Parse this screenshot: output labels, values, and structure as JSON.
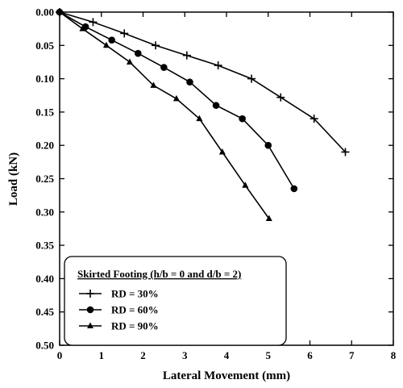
{
  "chart_data": {
    "type": "line",
    "title": "",
    "xlabel": "Lateral Movement (mm)",
    "ylabel": "Load (kN)",
    "xlim": [
      0,
      8
    ],
    "ylim": [
      0,
      0.5
    ],
    "y_inverted": true,
    "x_ticks": [
      "0",
      "1",
      "2",
      "3",
      "4",
      "5",
      "6",
      "7",
      "8"
    ],
    "y_ticks": [
      "0.00",
      "0.05",
      "0.10",
      "0.15",
      "0.20",
      "0.25",
      "0.30",
      "0.35",
      "0.40",
      "0.45",
      "0.50"
    ],
    "grid": false,
    "legend_title": "Skirted Footing (h/b = 0 and d/b = 2)",
    "legend_position": "bottom-left",
    "series": [
      {
        "name": "RD = 30%",
        "marker": "plus",
        "x": [
          0,
          0.8,
          1.55,
          2.3,
          3.05,
          3.8,
          4.6,
          5.3,
          6.1,
          6.85
        ],
        "y": [
          0,
          0.015,
          0.032,
          0.05,
          0.065,
          0.08,
          0.1,
          0.128,
          0.16,
          0.21
        ]
      },
      {
        "name": "RD = 60%",
        "marker": "circle",
        "x": [
          0,
          0.62,
          1.25,
          1.88,
          2.5,
          3.12,
          3.75,
          4.38,
          5.0,
          5.62
        ],
        "y": [
          0,
          0.022,
          0.042,
          0.062,
          0.083,
          0.105,
          0.14,
          0.16,
          0.2,
          0.265
        ]
      },
      {
        "name": "RD = 90%",
        "marker": "triangle",
        "x": [
          0,
          0.55,
          1.12,
          1.68,
          2.25,
          2.8,
          3.35,
          3.9,
          4.45,
          5.02
        ],
        "y": [
          0,
          0.025,
          0.05,
          0.075,
          0.11,
          0.13,
          0.16,
          0.21,
          0.26,
          0.31
        ]
      }
    ]
  }
}
